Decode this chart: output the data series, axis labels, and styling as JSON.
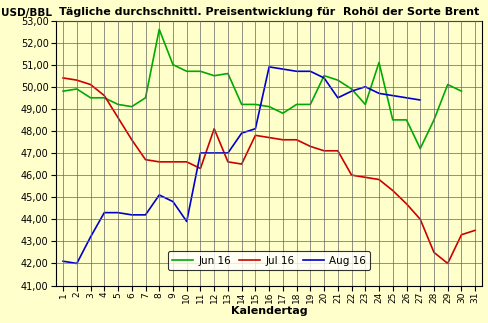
{
  "title": "Tägliche durchschnittl. Preisentwicklung für  Rohöl der Sorte Brent",
  "ylabel": "USD/BBL",
  "xlabel": "Kalendertag",
  "background_color": "#FFFFCC",
  "ylim": [
    41.0,
    53.0
  ],
  "yticks": [
    41.0,
    42.0,
    43.0,
    44.0,
    45.0,
    46.0,
    47.0,
    48.0,
    49.0,
    50.0,
    51.0,
    52.0,
    53.0
  ],
  "xticks": [
    1,
    2,
    3,
    4,
    5,
    6,
    7,
    8,
    9,
    10,
    11,
    12,
    13,
    14,
    15,
    16,
    17,
    18,
    19,
    20,
    21,
    22,
    23,
    24,
    25,
    26,
    27,
    28,
    29,
    30,
    31
  ],
  "jun16": {
    "x": [
      1,
      2,
      3,
      4,
      5,
      6,
      7,
      8,
      9,
      10,
      11,
      12,
      13,
      14,
      15,
      16,
      17,
      18,
      19,
      20,
      21,
      22,
      23,
      24,
      25,
      26,
      27,
      28,
      29,
      30
    ],
    "y": [
      49.8,
      49.9,
      49.5,
      49.5,
      49.2,
      49.1,
      49.5,
      52.6,
      51.0,
      50.7,
      50.7,
      50.5,
      50.6,
      49.2,
      49.2,
      49.1,
      48.8,
      49.2,
      49.2,
      50.5,
      50.3,
      49.9,
      49.2,
      51.1,
      48.5,
      48.5,
      47.2,
      48.5,
      50.1,
      49.8
    ],
    "color": "#00AA00",
    "label": "Jun 16"
  },
  "jul16": {
    "x": [
      1,
      2,
      3,
      4,
      5,
      6,
      7,
      8,
      9,
      10,
      11,
      12,
      13,
      14,
      15,
      16,
      17,
      18,
      19,
      20,
      21,
      22,
      23,
      24,
      25,
      26,
      27,
      28,
      29,
      30,
      31
    ],
    "y": [
      50.4,
      50.3,
      50.1,
      49.6,
      48.6,
      47.6,
      46.7,
      46.6,
      46.6,
      46.6,
      46.3,
      48.1,
      46.6,
      46.5,
      47.8,
      47.7,
      47.6,
      47.6,
      47.3,
      47.1,
      47.1,
      46.0,
      45.9,
      45.8,
      45.3,
      44.7,
      44.0,
      42.5,
      42.0,
      43.3,
      43.5
    ],
    "color": "#CC0000",
    "label": "Jul 16"
  },
  "aug16": {
    "x": [
      1,
      2,
      3,
      4,
      5,
      6,
      7,
      8,
      9,
      10,
      11,
      12,
      13,
      14,
      15,
      16,
      17,
      18,
      19,
      20,
      21,
      22,
      23,
      24,
      25,
      26,
      27,
      28,
      29,
      30
    ],
    "y": [
      42.1,
      42.0,
      43.2,
      44.3,
      44.3,
      44.2,
      44.2,
      45.1,
      44.8,
      43.9,
      47.0,
      47.0,
      47.0,
      47.9,
      48.1,
      50.9,
      50.8,
      50.7,
      50.7,
      50.4,
      49.5,
      49.8,
      50.0,
      49.7,
      49.6,
      49.5,
      49.4,
      null,
      null,
      null
    ],
    "color": "#0000CC",
    "label": "Aug 16"
  }
}
